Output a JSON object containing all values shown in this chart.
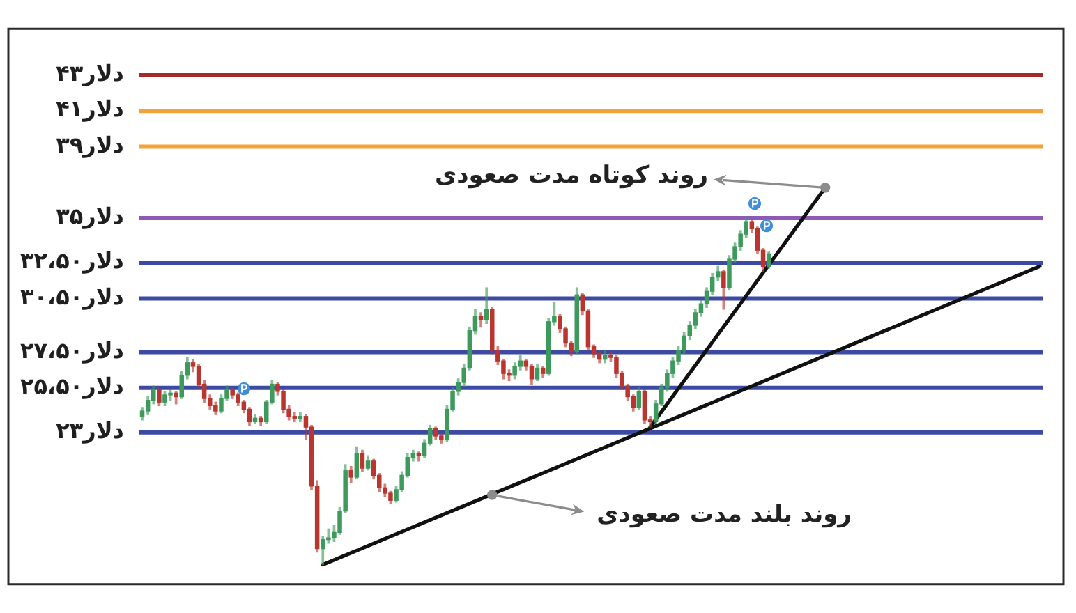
{
  "chart_data": {
    "type": "candlestick",
    "categories": [
      null,
      null,
      null,
      null,
      null,
      null,
      null,
      null,
      null,
      null,
      null,
      null,
      null,
      null,
      null,
      null,
      null,
      null,
      null,
      null,
      null,
      null,
      null,
      null,
      null,
      null,
      null,
      null,
      null,
      null,
      null,
      null,
      null,
      null,
      null,
      null,
      null,
      null,
      null,
      null,
      null,
      null,
      null,
      null,
      null,
      null,
      null,
      null,
      null,
      null,
      null,
      null,
      null,
      null,
      null,
      null,
      null,
      null,
      null,
      null,
      null,
      null,
      null,
      null,
      null,
      null,
      null,
      null,
      null,
      null,
      null,
      null,
      null,
      null,
      null,
      null,
      null,
      null,
      null,
      null,
      null,
      null,
      null,
      null,
      null,
      null,
      null,
      null,
      null,
      null,
      null,
      null,
      null,
      null,
      null,
      null,
      null,
      null,
      null,
      null,
      null,
      null,
      null,
      null,
      null,
      null,
      null,
      null,
      null,
      null,
      null,
      null,
      null,
      null,
      null,
      null,
      null,
      null,
      null,
      null,
      null,
      null,
      null,
      null,
      null,
      null,
      null,
      null,
      null,
      null,
      null,
      null,
      null,
      null,
      null,
      null,
      null,
      null,
      null,
      null,
      null,
      null,
      null,
      null,
      null,
      null,
      null,
      null,
      null,
      null,
      null,
      null,
      null,
      null,
      null,
      null,
      null,
      null,
      null,
      null
    ],
    "ylim": [
      14.5,
      45.6
    ],
    "yticks": [
      {
        "value": 23,
        "label": "۲۳دلار"
      },
      {
        "value": 25.5,
        "label": "۲۵،۵۰دلار"
      },
      {
        "value": 27.5,
        "label": "۲۷،۵۰دلار"
      },
      {
        "value": 30.5,
        "label": "۳۰،۵۰دلار"
      },
      {
        "value": 32.5,
        "label": "۳۲،۵۰دلار"
      },
      {
        "value": 35,
        "label": "۳۵دلار"
      },
      {
        "value": 39,
        "label": "۳۹دلار"
      },
      {
        "value": 41,
        "label": "۴۱دلار"
      },
      {
        "value": 43,
        "label": "۴۳دلار"
      }
    ],
    "tick_labels": "y",
    "legend": false,
    "marker": "none",
    "annotations": [
      "روند کوتاه مدت صعودی",
      "روند بلند مدت صعودی"
    ],
    "ref_lines": [
      {
        "axis": "y",
        "value": 43,
        "color": "#a52a2a"
      },
      {
        "axis": "y",
        "value": 41,
        "color": "#f4a23a"
      },
      {
        "axis": "y",
        "value": 39,
        "color": "#f4a23a"
      },
      {
        "axis": "y",
        "value": 35,
        "color": "#8d5bb6"
      },
      {
        "axis": "y",
        "value": 32.5,
        "color": "#3c4aa3"
      },
      {
        "axis": "y",
        "value": 30.5,
        "color": "#3c4aa3"
      },
      {
        "axis": "y",
        "value": 27.5,
        "color": "#3c4aa3"
      },
      {
        "axis": "y",
        "value": 25.5,
        "color": "#3c4aa3"
      },
      {
        "axis": "y",
        "value": 23,
        "color": "#3c4aa3"
      }
    ],
    "series": [
      {
        "ohlc": [
          [
            23.9,
            24.4,
            23.7,
            24.2
          ],
          [
            24.2,
            25.0,
            24.0,
            24.8
          ],
          [
            24.8,
            25.6,
            24.6,
            25.4
          ],
          [
            25.4,
            25.5,
            24.5,
            24.7
          ],
          [
            24.7,
            25.3,
            24.5,
            25.1
          ],
          [
            25.1,
            25.4,
            24.8,
            25.2
          ],
          [
            25.2,
            25.3,
            24.6,
            25.0
          ],
          [
            25.0,
            26.4,
            24.9,
            26.2
          ],
          [
            26.2,
            27.2,
            26.0,
            26.9
          ],
          [
            26.9,
            27.1,
            26.4,
            26.7
          ],
          [
            26.7,
            26.8,
            25.5,
            25.7
          ],
          [
            25.7,
            25.9,
            24.7,
            24.9
          ],
          [
            24.9,
            25.1,
            24.3,
            24.5
          ],
          [
            24.5,
            24.7,
            24.0,
            24.2
          ],
          [
            24.2,
            25.1,
            24.1,
            24.9
          ],
          [
            24.9,
            25.6,
            24.8,
            25.4
          ],
          [
            25.4,
            25.5,
            24.9,
            25.1
          ],
          [
            25.1,
            25.2,
            24.5,
            24.7
          ],
          [
            24.7,
            24.8,
            24.1,
            24.3
          ],
          [
            24.3,
            24.4,
            23.4,
            23.6
          ],
          [
            23.6,
            24.0,
            23.5,
            23.8
          ],
          [
            23.8,
            23.9,
            23.4,
            23.6
          ],
          [
            23.6,
            24.8,
            23.5,
            24.7
          ],
          [
            24.7,
            25.9,
            24.6,
            25.7
          ],
          [
            25.7,
            25.8,
            25.1,
            25.3
          ],
          [
            25.3,
            25.4,
            24.1,
            24.3
          ],
          [
            24.3,
            24.5,
            23.7,
            23.9
          ],
          [
            23.9,
            24.1,
            23.6,
            23.8
          ],
          [
            23.8,
            24.1,
            23.6,
            23.9
          ],
          [
            23.9,
            24.0,
            22.6,
            23.3
          ],
          [
            23.3,
            23.4,
            19.8,
            20.0
          ],
          [
            20.0,
            20.3,
            16.3,
            16.5
          ],
          [
            16.5,
            17.2,
            15.6,
            17.0
          ],
          [
            17.0,
            17.6,
            16.8,
            17.1
          ],
          [
            17.1,
            17.8,
            16.9,
            17.4
          ],
          [
            17.4,
            18.8,
            17.3,
            18.6
          ],
          [
            18.6,
            21.2,
            18.5,
            20.9
          ],
          [
            20.9,
            21.1,
            20.2,
            20.5
          ],
          [
            20.5,
            22.2,
            20.4,
            21.8
          ],
          [
            21.8,
            22.0,
            20.8,
            21.0
          ],
          [
            21.0,
            21.7,
            20.9,
            21.4
          ],
          [
            21.4,
            21.5,
            20.4,
            20.6
          ],
          [
            20.6,
            20.7,
            19.7,
            19.9
          ],
          [
            19.9,
            20.1,
            19.4,
            19.6
          ],
          [
            19.6,
            19.7,
            19.0,
            19.2
          ],
          [
            19.2,
            20.0,
            19.1,
            19.8
          ],
          [
            19.8,
            20.8,
            19.7,
            20.6
          ],
          [
            20.6,
            21.8,
            20.5,
            21.6
          ],
          [
            21.6,
            22.0,
            21.4,
            21.8
          ],
          [
            21.8,
            21.9,
            21.4,
            21.7
          ],
          [
            21.7,
            22.6,
            21.6,
            22.4
          ],
          [
            22.4,
            23.4,
            22.3,
            23.2
          ],
          [
            23.2,
            23.3,
            22.6,
            22.8
          ],
          [
            22.8,
            22.9,
            22.4,
            22.6
          ],
          [
            22.6,
            24.5,
            22.5,
            24.3
          ],
          [
            24.3,
            25.5,
            24.2,
            25.3
          ],
          [
            25.3,
            26.0,
            25.1,
            25.8
          ],
          [
            25.8,
            26.8,
            25.6,
            26.6
          ],
          [
            26.6,
            28.9,
            26.5,
            28.7
          ],
          [
            28.7,
            29.9,
            28.5,
            29.5
          ],
          [
            29.5,
            29.7,
            28.9,
            29.3
          ],
          [
            29.3,
            31.1,
            29.1,
            29.9
          ],
          [
            29.9,
            30.0,
            27.4,
            27.6
          ],
          [
            27.6,
            27.8,
            26.8,
            27.0
          ],
          [
            27.0,
            27.1,
            26.0,
            26.3
          ],
          [
            26.3,
            26.5,
            25.9,
            26.2
          ],
          [
            26.2,
            26.9,
            26.0,
            26.7
          ],
          [
            26.7,
            27.3,
            26.5,
            27.0
          ],
          [
            27.0,
            27.1,
            26.5,
            26.7
          ],
          [
            26.7,
            26.8,
            25.7,
            26.0
          ],
          [
            26.0,
            26.8,
            25.9,
            26.6
          ],
          [
            26.6,
            26.7,
            26.1,
            26.3
          ],
          [
            26.3,
            29.4,
            26.2,
            29.2
          ],
          [
            29.2,
            30.3,
            29.0,
            29.5
          ],
          [
            29.5,
            29.6,
            28.6,
            28.8
          ],
          [
            28.8,
            28.9,
            27.8,
            28.0
          ],
          [
            28.0,
            28.1,
            27.3,
            27.5
          ],
          [
            27.5,
            31.1,
            27.4,
            30.7
          ],
          [
            30.7,
            30.8,
            29.6,
            29.8
          ],
          [
            29.8,
            29.9,
            27.6,
            27.8
          ],
          [
            27.8,
            27.9,
            27.2,
            27.4
          ],
          [
            27.4,
            27.5,
            26.9,
            27.1
          ],
          [
            27.1,
            27.6,
            26.9,
            27.3
          ],
          [
            27.3,
            27.5,
            27.0,
            27.2
          ],
          [
            27.2,
            27.3,
            26.1,
            26.3
          ],
          [
            26.3,
            26.4,
            25.4,
            25.6
          ],
          [
            25.6,
            25.7,
            24.8,
            25.0
          ],
          [
            25.0,
            25.1,
            24.2,
            24.4
          ],
          [
            24.4,
            25.5,
            24.3,
            25.3
          ],
          [
            25.3,
            25.4,
            23.5,
            23.7
          ],
          [
            23.7,
            23.9,
            23.3,
            23.6
          ],
          [
            23.6,
            24.8,
            23.5,
            24.6
          ],
          [
            24.6,
            25.7,
            24.5,
            25.5
          ],
          [
            25.5,
            26.5,
            25.3,
            26.3
          ],
          [
            26.3,
            27.2,
            26.1,
            27.0
          ],
          [
            27.0,
            27.8,
            26.8,
            27.6
          ],
          [
            27.6,
            28.6,
            27.4,
            28.4
          ],
          [
            28.4,
            29.2,
            28.2,
            29.0
          ],
          [
            29.0,
            29.9,
            28.8,
            29.7
          ],
          [
            29.7,
            30.4,
            29.5,
            30.2
          ],
          [
            30.2,
            31.1,
            30.0,
            30.9
          ],
          [
            30.9,
            31.9,
            30.7,
            31.7
          ],
          [
            31.7,
            32.3,
            31.5,
            32.0
          ],
          [
            32.0,
            32.1,
            29.9,
            31.1
          ],
          [
            31.1,
            32.9,
            31.0,
            32.7
          ],
          [
            32.7,
            33.6,
            32.5,
            33.4
          ],
          [
            33.4,
            34.3,
            33.2,
            34.1
          ],
          [
            34.1,
            35.0,
            33.9,
            34.8
          ],
          [
            34.8,
            34.9,
            34.2,
            34.4
          ],
          [
            34.4,
            34.5,
            33.0,
            33.2
          ],
          [
            33.2,
            33.3,
            32.0,
            32.3
          ],
          [
            32.3,
            33.1,
            32.2,
            33.0
          ],
          null,
          null,
          null,
          null,
          null,
          null,
          null,
          null,
          null,
          null,
          null,
          null,
          null,
          null,
          null,
          null,
          null,
          null,
          null,
          null,
          null,
          null,
          null,
          null,
          null,
          null,
          null,
          null,
          null,
          null,
          null,
          null,
          null,
          null,
          null,
          null,
          null,
          null,
          null,
          null,
          null,
          null,
          null,
          null,
          null,
          null,
          null,
          null
        ],
        "colors": [
          "#3d9a5c",
          "#3d9a5c",
          "#3d9a5c",
          "#b8362f",
          "#3d9a5c",
          "#3d9a5c",
          "#b8362f",
          "#3d9a5c",
          "#3d9a5c",
          "#b8362f",
          "#b8362f",
          "#b8362f",
          "#b8362f",
          "#b8362f",
          "#3d9a5c",
          "#3d9a5c",
          "#b8362f",
          "#b8362f",
          "#b8362f",
          "#b8362f",
          "#3d9a5c",
          "#b8362f",
          "#3d9a5c",
          "#3d9a5c",
          "#b8362f",
          "#b8362f",
          "#b8362f",
          "#b8362f",
          "#3d9a5c",
          "#b8362f",
          "#b8362f",
          "#b8362f",
          "#3d9a5c",
          "#3d9a5c",
          "#3d9a5c",
          "#3d9a5c",
          "#3d9a5c",
          "#b8362f",
          "#3d9a5c",
          "#b8362f",
          "#3d9a5c",
          "#b8362f",
          "#b8362f",
          "#b8362f",
          "#b8362f",
          "#3d9a5c",
          "#3d9a5c",
          "#3d9a5c",
          "#3d9a5c",
          "#b8362f",
          "#3d9a5c",
          "#3d9a5c",
          "#b8362f",
          "#b8362f",
          "#3d9a5c",
          "#3d9a5c",
          "#3d9a5c",
          "#3d9a5c",
          "#3d9a5c",
          "#3d9a5c",
          "#b8362f",
          "#3d9a5c",
          "#b8362f",
          "#b8362f",
          "#b8362f",
          "#b8362f",
          "#3d9a5c",
          "#3d9a5c",
          "#b8362f",
          "#b8362f",
          "#3d9a5c",
          "#b8362f",
          "#3d9a5c",
          "#3d9a5c",
          "#b8362f",
          "#b8362f",
          "#b8362f",
          "#3d9a5c",
          "#b8362f",
          "#b8362f",
          "#b8362f",
          "#b8362f",
          "#3d9a5c",
          "#b8362f",
          "#b8362f",
          "#b8362f",
          "#b8362f",
          "#b8362f",
          "#3d9a5c",
          "#b8362f",
          "#b8362f",
          "#3d9a5c",
          "#3d9a5c",
          "#3d9a5c",
          "#3d9a5c",
          "#3d9a5c",
          "#3d9a5c",
          "#3d9a5c",
          "#3d9a5c",
          "#3d9a5c",
          "#3d9a5c",
          "#3d9a5c",
          "#3d9a5c",
          "#b8362f",
          "#3d9a5c",
          "#3d9a5c",
          "#3d9a5c",
          "#3d9a5c",
          "#b8362f",
          "#b8362f",
          "#b8362f",
          "#3d9a5c",
          null,
          null,
          null,
          null,
          null,
          null,
          null,
          null,
          null,
          null,
          null,
          null,
          null,
          null,
          null,
          null,
          null,
          null,
          null,
          null,
          null,
          null,
          null,
          null,
          null,
          null,
          null,
          null,
          null,
          null,
          null,
          null,
          null,
          null,
          null,
          null,
          null,
          null,
          null,
          null,
          null,
          null,
          null,
          null,
          null,
          null,
          null,
          null
        ]
      },
      {
        "type": "line",
        "color": "#111111",
        "values": [
          null,
          null,
          null,
          null,
          null,
          null,
          null,
          null,
          null,
          null,
          null,
          null,
          null,
          null,
          null,
          null,
          null,
          null,
          null,
          null,
          null,
          null,
          null,
          null,
          null,
          null,
          null,
          null,
          null,
          null,
          null,
          null,
          null,
          null,
          null,
          null,
          null,
          null,
          null,
          null,
          null,
          null,
          null,
          null,
          null,
          null,
          null,
          null,
          null,
          null,
          null,
          null,
          null,
          null,
          null,
          null,
          null,
          null,
          null,
          null,
          null,
          null,
          null,
          null,
          null,
          null,
          null,
          null,
          null,
          null,
          null,
          null,
          null,
          null,
          null,
          null,
          null,
          null,
          null,
          null,
          null,
          null,
          null,
          null,
          null,
          null,
          null,
          null,
          null,
          null,
          23.3,
          null,
          null,
          null,
          null,
          null,
          null,
          null,
          null,
          null,
          null,
          null,
          null,
          null,
          null,
          null,
          null,
          null,
          null,
          null,
          null,
          null,
          null,
          null,
          null,
          null,
          null,
          null,
          null,
          null,
          null,
          36.7,
          null,
          null,
          null,
          null,
          null,
          null,
          null,
          null,
          null,
          null,
          null,
          null,
          null,
          null,
          null,
          null,
          null,
          null,
          null,
          null,
          null,
          null,
          null,
          null,
          null,
          null,
          null,
          null,
          null,
          null,
          null,
          null,
          null,
          null,
          null,
          null,
          null,
          null
        ]
      },
      {
        "type": "line",
        "color": "#111111",
        "values": [
          null,
          null,
          null,
          null,
          null,
          null,
          null,
          null,
          null,
          null,
          null,
          null,
          null,
          null,
          null,
          null,
          null,
          null,
          null,
          null,
          null,
          null,
          null,
          null,
          null,
          null,
          null,
          null,
          null,
          null,
          null,
          null,
          15.6,
          null,
          null,
          null,
          null,
          null,
          null,
          null,
          null,
          null,
          null,
          null,
          null,
          null,
          null,
          null,
          null,
          null,
          null,
          null,
          null,
          null,
          null,
          null,
          null,
          null,
          null,
          null,
          null,
          null,
          null,
          null,
          null,
          null,
          null,
          null,
          null,
          null,
          null,
          null,
          null,
          null,
          null,
          null,
          null,
          null,
          null,
          null,
          null,
          null,
          null,
          null,
          null,
          null,
          null,
          null,
          null,
          null,
          null,
          null,
          null,
          null,
          null,
          null,
          null,
          null,
          null,
          null,
          null,
          null,
          null,
          null,
          null,
          null,
          null,
          null,
          null,
          null,
          null,
          null,
          null,
          null,
          null,
          null,
          null,
          null,
          null,
          null,
          null,
          null,
          null,
          null,
          null,
          null,
          null,
          null,
          null,
          null,
          null,
          null,
          null,
          null,
          null,
          null,
          null,
          null,
          null,
          null,
          null,
          null,
          null,
          null,
          null,
          null,
          null,
          null,
          null,
          null,
          null,
          null,
          null,
          null,
          null,
          null,
          null,
          null,
          null,
          32.3
        ]
      },
      {
        "type": "scatter",
        "color": "#8c8c8c",
        "marker": "circle",
        "values": [
          null,
          null,
          null,
          null,
          null,
          null,
          null,
          null,
          null,
          null,
          null,
          null,
          null,
          null,
          null,
          null,
          null,
          null,
          null,
          null,
          null,
          null,
          null,
          null,
          null,
          null,
          null,
          null,
          null,
          null,
          null,
          null,
          null,
          null,
          null,
          null,
          null,
          null,
          null,
          null,
          null,
          null,
          null,
          null,
          null,
          null,
          null,
          null,
          null,
          null,
          null,
          null,
          null,
          null,
          null,
          null,
          null,
          null,
          null,
          null,
          null,
          null,
          19.5,
          null,
          null,
          null,
          null,
          null,
          null,
          null,
          null,
          null,
          null,
          null,
          null,
          null,
          null,
          null,
          null,
          null,
          null,
          null,
          null,
          null,
          null,
          null,
          null,
          null,
          null,
          null,
          null,
          null,
          null,
          null,
          null,
          null,
          null,
          null,
          null,
          null,
          null,
          null,
          null,
          null,
          null,
          null,
          null,
          null,
          null,
          null,
          null,
          null,
          null,
          null,
          null,
          null,
          null,
          null,
          null,
          null,
          null,
          36.7,
          null,
          null,
          null,
          null,
          null,
          null,
          null,
          null,
          null,
          null,
          null,
          null,
          null,
          null,
          null,
          null,
          null,
          null,
          null,
          null,
          null,
          null,
          null,
          null,
          null,
          null,
          null,
          null,
          null,
          null,
          null,
          null,
          null,
          null,
          null,
          null,
          null,
          null
        ]
      }
    ]
  }
}
